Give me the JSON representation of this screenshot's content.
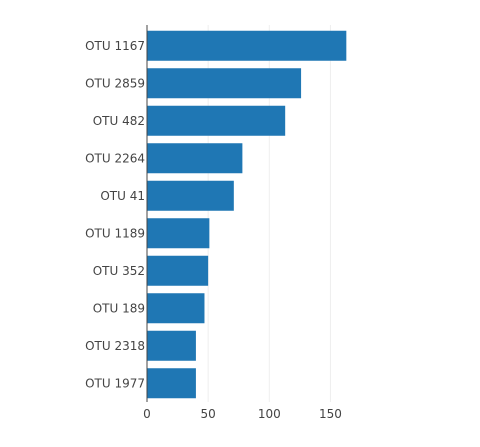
{
  "chart_data": {
    "type": "bar",
    "orientation": "horizontal",
    "categories": [
      "OTU 1167",
      "OTU 2859",
      "OTU 482",
      "OTU 2264",
      "OTU 41",
      "OTU 1189",
      "OTU 352",
      "OTU 189",
      "OTU 2318",
      "OTU 1977"
    ],
    "values": [
      163,
      126,
      113,
      78,
      71,
      51,
      50,
      47,
      40,
      40
    ],
    "xlim": [
      0,
      175
    ],
    "xticks": [
      0,
      50,
      100,
      150
    ],
    "grid": true,
    "bar_color": "#1f77b4",
    "grid_color": "#eeeeee",
    "axis_color": "#444444"
  }
}
